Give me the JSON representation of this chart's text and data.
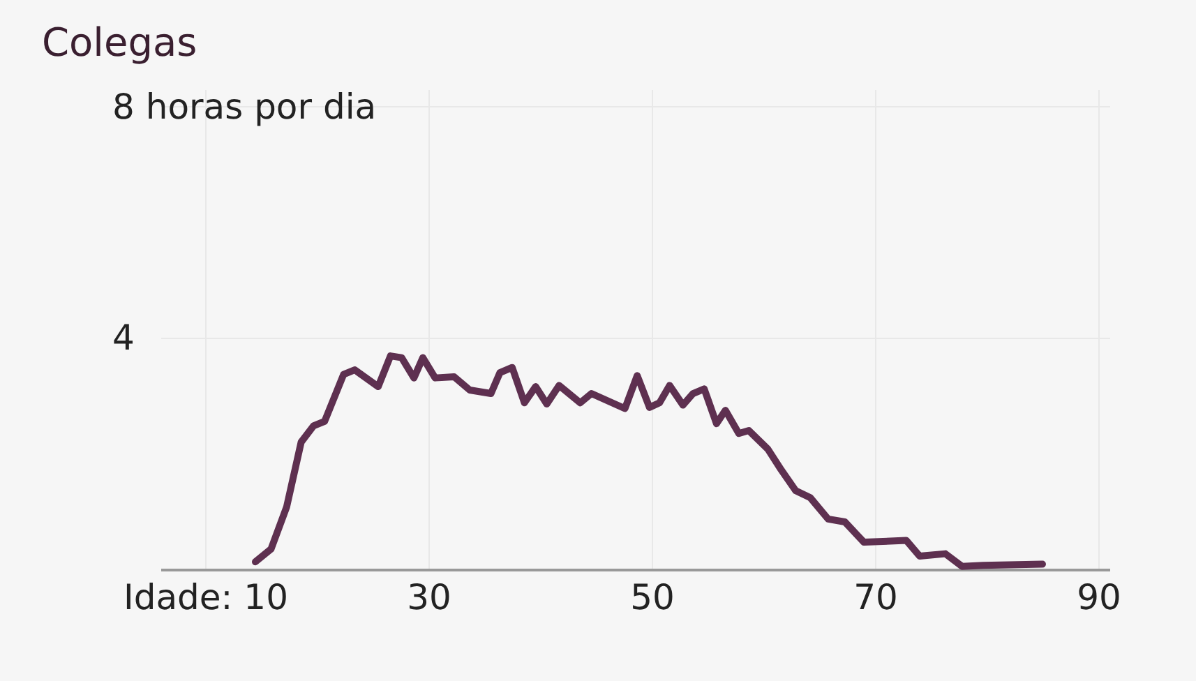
{
  "chart_data": {
    "type": "line",
    "title": "Colegas",
    "x": [
      14.5,
      15.9,
      17.3,
      18.6,
      19.7,
      20.7,
      22.4,
      23.4,
      25.5,
      26.6,
      27.6,
      28.7,
      29.5,
      30.6,
      32.3,
      33.7,
      35.6,
      36.4,
      37.5,
      38.6,
      39.6,
      40.6,
      41.7,
      43.6,
      44.6,
      47.6,
      48.7,
      49.8,
      50.7,
      51.6,
      52.8,
      53.7,
      54.7,
      55.8,
      56.6,
      57.8,
      58.7,
      60.4,
      61.6,
      62.9,
      64.2,
      65.8,
      67.3,
      69.0,
      72.8,
      74.0,
      76.3,
      77.8,
      79.7,
      85.0
    ],
    "series": [
      {
        "color": "#5e3050",
        "values": [
          0.13,
          0.35,
          1.08,
          2.2,
          2.48,
          2.56,
          3.37,
          3.45,
          3.16,
          3.69,
          3.66,
          3.31,
          3.66,
          3.31,
          3.33,
          3.1,
          3.04,
          3.4,
          3.49,
          2.88,
          3.16,
          2.86,
          3.18,
          2.88,
          3.04,
          2.78,
          3.35,
          2.8,
          2.88,
          3.18,
          2.84,
          3.04,
          3.12,
          2.52,
          2.75,
          2.35,
          2.4,
          2.08,
          1.72,
          1.36,
          1.24,
          0.87,
          0.82,
          0.47,
          0.5,
          0.23,
          0.27,
          0.05,
          0.07,
          0.09
        ]
      }
    ],
    "xlim": [
      6,
      91
    ],
    "xticks": [
      {
        "value": 10,
        "label": "Idade: 10"
      },
      30,
      50,
      70,
      90
    ],
    "ylim": [
      0,
      8.3
    ],
    "yticks": [
      4,
      {
        "value": 8,
        "label": "8 horas por dia"
      }
    ],
    "grid": true,
    "marker": "none",
    "line_style": "solid",
    "legend": false
  }
}
